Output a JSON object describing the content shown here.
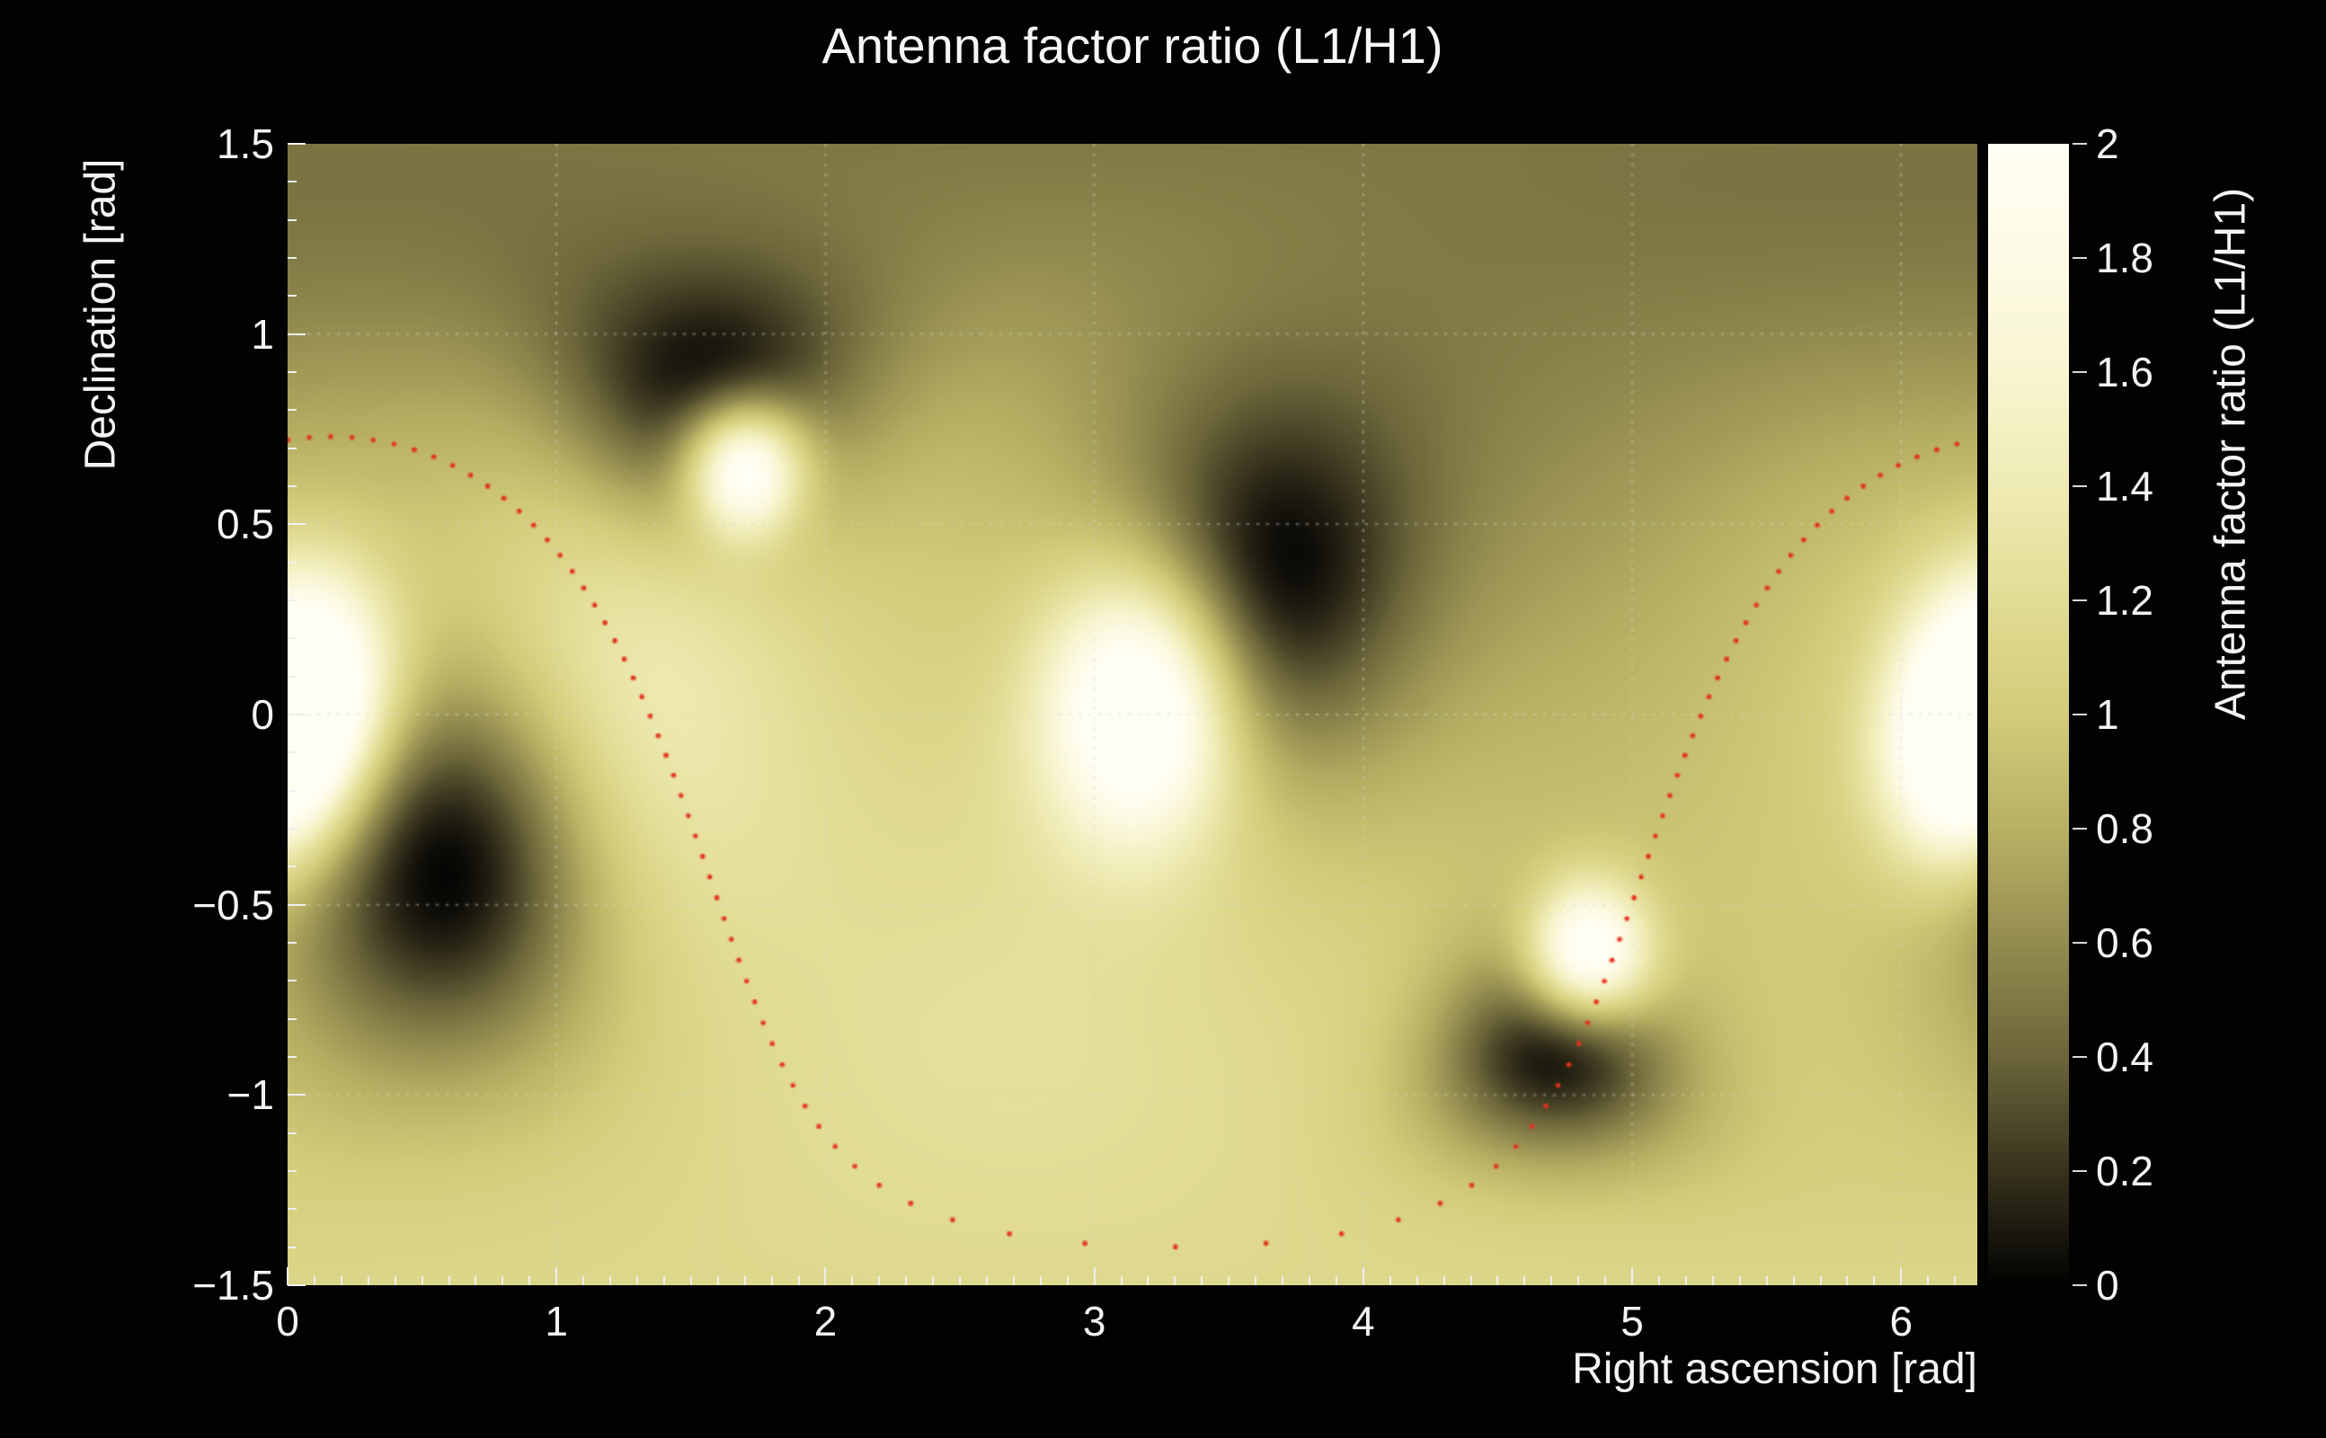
{
  "page": {
    "background": "#020202",
    "text_color": "#f4f4f4"
  },
  "chart_data": {
    "type": "heatmap",
    "title": "Antenna factor ratio (L1/H1)",
    "xlabel": "Right ascension [rad]",
    "ylabel": "Declination [rad]",
    "colorbar_label": "Antenna factor ratio (L1/H1)",
    "x_range": [
      0,
      6.2832
    ],
    "y_range": [
      -1.5,
      1.5
    ],
    "z_range": [
      0,
      2
    ],
    "x_ticks": [
      0,
      1,
      2,
      3,
      4,
      5,
      6
    ],
    "x_tick_labels": [
      "0",
      "1",
      "2",
      "3",
      "4",
      "5",
      "6"
    ],
    "x_minor_tick_step": 0.1,
    "y_ticks": [
      1.5,
      1,
      0.5,
      0,
      -0.5,
      -1,
      -1.5
    ],
    "y_tick_labels": [
      "1.5",
      "1",
      "0.5",
      "0",
      "−0.5",
      "−1",
      "−1.5"
    ],
    "y_minor_tick_step": 0.1,
    "grid": {
      "x": [
        1,
        2,
        3,
        4,
        5,
        6
      ],
      "y": [
        -1,
        -0.5,
        0,
        0.5,
        1
      ]
    },
    "colorbar_ticks": [
      2,
      1.8,
      1.6,
      1.4,
      1.2,
      1,
      0.8,
      0.6,
      0.4,
      0.2,
      0
    ],
    "colorbar_tick_labels": [
      "2",
      "1.8",
      "1.6",
      "1.4",
      "1.2",
      "1",
      "0.8",
      "0.6",
      "0.4",
      "0.2",
      "0"
    ],
    "colormap_stops": [
      [
        0.0,
        [
          3,
          3,
          2
        ]
      ],
      [
        0.2,
        [
          56,
          52,
          30
        ]
      ],
      [
        0.4,
        [
          108,
          102,
          58
        ]
      ],
      [
        0.6,
        [
          148,
          141,
          80
        ]
      ],
      [
        0.8,
        [
          184,
          177,
          100
        ]
      ],
      [
        1.0,
        [
          211,
          204,
          122
        ]
      ],
      [
        1.2,
        [
          226,
          221,
          149
        ]
      ],
      [
        1.4,
        [
          239,
          235,
          180
        ]
      ],
      [
        1.6,
        [
          248,
          245,
          209
        ]
      ],
      [
        1.8,
        [
          253,
          251,
          230
        ]
      ],
      [
        2.0,
        [
          255,
          254,
          243
        ]
      ]
    ],
    "field_model": {
      "base_level": 0.95,
      "dark_minima": [
        {
          "ra": 1.57,
          "dec": 0.88,
          "radius": 0.35
        },
        {
          "ra": 3.7,
          "dec": 0.4,
          "radius": 0.48
        },
        {
          "ra": 0.57,
          "dec": -0.42,
          "radius": 0.5
        },
        {
          "ra": 4.72,
          "dec": -0.88,
          "radius": 0.28
        }
      ],
      "bright_maxima": [
        {
          "ra": 0.08,
          "dec": 0.08,
          "radius": 0.3,
          "amp": 1.5
        },
        {
          "ra": 3.17,
          "dec": 0.02,
          "radius": 0.34,
          "amp": 1.5
        },
        {
          "ra": 1.7,
          "dec": 0.65,
          "radius": 0.17,
          "amp": 1.6
        },
        {
          "ra": 4.84,
          "dec": -0.63,
          "radius": 0.18,
          "amp": 1.5
        },
        {
          "ra": 6.22,
          "dec": -0.12,
          "radius": 0.28,
          "amp": 1.3
        }
      ],
      "broad_shading": [
        {
          "ra": 4.55,
          "dec": 1.05,
          "radius": 1.1,
          "amp": -0.4
        },
        {
          "ra": 0.25,
          "dec": 1.3,
          "radius": 0.6,
          "amp": -0.3
        },
        {
          "ra": 2.75,
          "dec": -0.85,
          "radius": 1.15,
          "amp": 0.3
        },
        {
          "ra": 5.85,
          "dec": 0.35,
          "radius": 0.75,
          "amp": 0.18
        },
        {
          "ra": 1.25,
          "dec": 0.1,
          "radius": 0.65,
          "amp": 0.45
        }
      ]
    },
    "overlay_curve": {
      "style": "dotted",
      "color": "#e5301d",
      "n_points": 100,
      "center_ra": 0.16,
      "center_dec": -0.506,
      "radius_rad": 1.236,
      "max_dec": 0.75,
      "min_dec": -1.4
    }
  }
}
